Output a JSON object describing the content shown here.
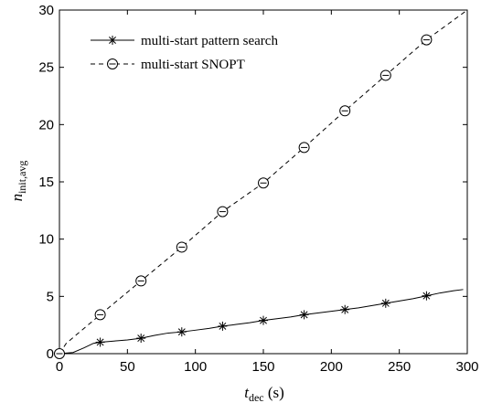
{
  "chart_data": {
    "type": "line",
    "title": "",
    "xlabel": {
      "main": "t",
      "sub": "dec",
      "unit": " (s)"
    },
    "ylabel": {
      "main": "n",
      "sub": "init,avg"
    },
    "xlim": [
      0,
      300
    ],
    "ylim": [
      0,
      30
    ],
    "xticks": [
      0,
      50,
      100,
      150,
      200,
      250,
      300
    ],
    "yticks": [
      0,
      5,
      10,
      15,
      20,
      25,
      30
    ],
    "grid": false,
    "legend_position": "top-left",
    "series": [
      {
        "name": "multi-start pattern search",
        "style": "solid",
        "marker": "asterisk",
        "color": "#000000",
        "x": [
          0,
          10,
          18,
          25,
          30,
          40,
          50,
          60,
          70,
          80,
          90,
          100,
          110,
          120,
          130,
          140,
          150,
          160,
          170,
          180,
          190,
          200,
          210,
          220,
          230,
          240,
          250,
          260,
          270,
          280,
          290,
          297
        ],
        "y": [
          0,
          0.1,
          0.5,
          0.9,
          1.0,
          1.1,
          1.2,
          1.35,
          1.6,
          1.8,
          1.9,
          2.05,
          2.2,
          2.4,
          2.55,
          2.7,
          2.9,
          3.05,
          3.2,
          3.4,
          3.55,
          3.7,
          3.85,
          4.0,
          4.2,
          4.4,
          4.6,
          4.8,
          5.05,
          5.3,
          5.5,
          5.6
        ],
        "markers_x": [
          0,
          30,
          60,
          90,
          120,
          150,
          180,
          210,
          240,
          270
        ],
        "markers_y": [
          0,
          1.0,
          1.35,
          1.9,
          2.4,
          2.9,
          3.4,
          3.85,
          4.4,
          5.05
        ]
      },
      {
        "name": "multi-start SNOPT",
        "style": "dashed",
        "marker": "circle-dash",
        "color": "#000000",
        "x": [
          0,
          5,
          30,
          60,
          90,
          120,
          150,
          180,
          210,
          240,
          270,
          300
        ],
        "y": [
          0,
          0.9,
          3.4,
          6.35,
          9.3,
          12.4,
          14.9,
          18.0,
          21.2,
          24.3,
          27.4,
          30.0
        ],
        "markers_x": [
          0,
          30,
          60,
          90,
          120,
          150,
          180,
          210,
          240,
          270
        ],
        "markers_y": [
          0,
          3.4,
          6.35,
          9.3,
          12.4,
          14.9,
          18.0,
          21.2,
          24.3,
          27.4
        ]
      }
    ]
  }
}
